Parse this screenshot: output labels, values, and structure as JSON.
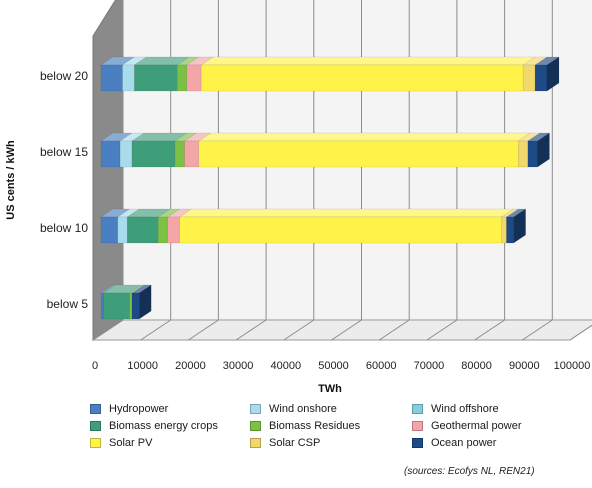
{
  "chart_data": {
    "type": "bar",
    "orientation": "horizontal",
    "stacked": true,
    "three_d": true,
    "title": "",
    "xlabel": "TWh",
    "ylabel": "US cents / kWh",
    "xlim": [
      0,
      100000
    ],
    "xticks": [
      0,
      10000,
      20000,
      30000,
      40000,
      50000,
      60000,
      70000,
      80000,
      90000,
      100000
    ],
    "xtick_labels": [
      "0",
      "10000",
      "20000",
      "30000",
      "40000",
      "50000",
      "60000",
      "70000",
      "80000",
      "90000",
      "100000"
    ],
    "categories": [
      "below 5",
      "below 10",
      "below 15",
      "below 20"
    ],
    "grid": true,
    "legend_position": "bottom",
    "series": [
      {
        "name": "Hydropower",
        "color": "#4a7fc1",
        "values": [
          500,
          3500,
          4000,
          4500
        ]
      },
      {
        "name": "Wind onshore",
        "color": "#a8dcec",
        "values": [
          0,
          2000,
          2500,
          2500
        ]
      },
      {
        "name": "Wind offshore",
        "color": "#86cde0",
        "values": [
          0,
          0,
          0,
          0
        ]
      },
      {
        "name": "Biomass energy crops",
        "color": "#3e9e7a",
        "values": [
          5500,
          6500,
          9000,
          9000
        ]
      },
      {
        "name": "Biomass Residues",
        "color": "#7cc143",
        "values": [
          500,
          2000,
          2000,
          2000
        ]
      },
      {
        "name": "Geothermal power",
        "color": "#f4a5a8",
        "values": [
          0,
          2500,
          3000,
          3000
        ]
      },
      {
        "name": "Solar PV",
        "color": "#fff34a",
        "values": [
          0,
          67500,
          67000,
          67500
        ]
      },
      {
        "name": "Solar CSP",
        "color": "#f2d76a",
        "values": [
          0,
          1000,
          2000,
          2500
        ]
      },
      {
        "name": "Ocean power",
        "color": "#1e4a86",
        "values": [
          1500,
          1500,
          2000,
          2500
        ]
      }
    ]
  },
  "source_note": "(sources: Ecofys NL, REN21)"
}
